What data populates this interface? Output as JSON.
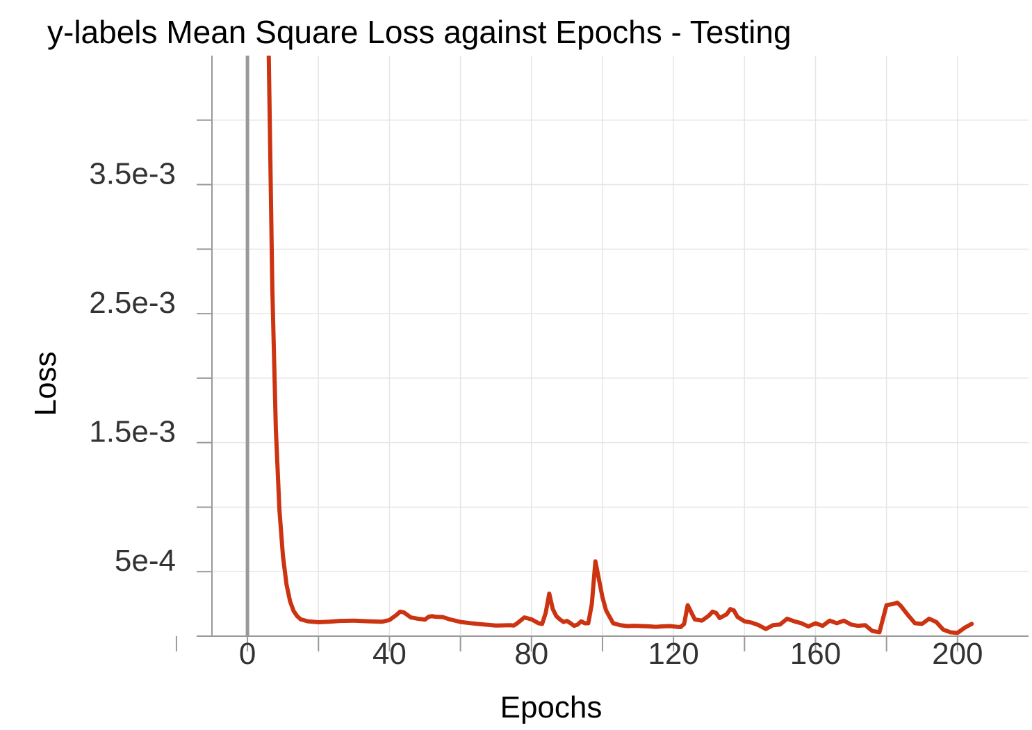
{
  "chart_data": {
    "type": "line",
    "title": "y-labels Mean Square Loss against Epochs - Testing",
    "xlabel": "Epochs",
    "ylabel": "Loss",
    "xlim": [
      -10,
      220
    ],
    "ylim": [
      0,
      0.0045
    ],
    "x_ticks": [
      0,
      40,
      80,
      120,
      160,
      200
    ],
    "x_minor_ticks": [
      -20,
      20,
      60,
      100,
      140,
      180
    ],
    "x_tick_labels": [
      "0",
      "40",
      "80",
      "120",
      "160",
      "200"
    ],
    "y_ticks": [
      0.0005,
      0.0015,
      0.0025,
      0.0035
    ],
    "y_minor_ticks": [
      0,
      0.001,
      0.002,
      0.003,
      0.004
    ],
    "y_tick_labels": [
      "5e-4",
      "1.5e-3",
      "2.5e-3",
      "3.5e-3"
    ],
    "grid": true,
    "series": [
      {
        "color": "#cc3311",
        "points": [
          [
            6,
            0.0045
          ],
          [
            7,
            0.0027
          ],
          [
            8,
            0.0016
          ],
          [
            9,
            0.00098
          ],
          [
            10,
            0.00062
          ],
          [
            11,
            0.0004
          ],
          [
            12,
            0.00027
          ],
          [
            13,
            0.000195
          ],
          [
            14,
            0.000155
          ],
          [
            15,
            0.00013
          ],
          [
            17,
            0.000115
          ],
          [
            20,
            0.000108
          ],
          [
            23,
            0.000112
          ],
          [
            26,
            0.000118
          ],
          [
            30,
            0.00012
          ],
          [
            34,
            0.000115
          ],
          [
            38,
            0.000112
          ],
          [
            40,
            0.000125
          ],
          [
            42,
            0.000165
          ],
          [
            43,
            0.00019
          ],
          [
            44,
            0.000185
          ],
          [
            46,
            0.000145
          ],
          [
            48,
            0.000135
          ],
          [
            50,
            0.000128
          ],
          [
            51,
            0.00015
          ],
          [
            52,
            0.000155
          ],
          [
            53,
            0.00015
          ],
          [
            55,
            0.000148
          ],
          [
            57,
            0.00013
          ],
          [
            60,
            0.00011
          ],
          [
            63,
            0.0001
          ],
          [
            66,
            9.2e-05
          ],
          [
            70,
            8.2e-05
          ],
          [
            74,
            8.5e-05
          ],
          [
            75,
            8.2e-05
          ],
          [
            76,
            0.0001
          ],
          [
            78,
            0.000145
          ],
          [
            80,
            0.00013
          ],
          [
            82,
            0.0001
          ],
          [
            83,
            9.5e-05
          ],
          [
            84,
            0.00018
          ],
          [
            85,
            0.00033
          ],
          [
            86,
            0.00021
          ],
          [
            87,
            0.000155
          ],
          [
            88,
            0.00013
          ],
          [
            89,
            0.00011
          ],
          [
            90,
            0.000118
          ],
          [
            91,
            0.0001
          ],
          [
            92,
            8e-05
          ],
          [
            93,
            9e-05
          ],
          [
            94,
            0.000115
          ],
          [
            95,
            0.0001
          ],
          [
            96,
            0.0001
          ],
          [
            97,
            0.00025
          ],
          [
            98,
            0.00058
          ],
          [
            99,
            0.00044
          ],
          [
            100,
            0.0003
          ],
          [
            101,
            0.0002
          ],
          [
            102,
            0.00015
          ],
          [
            103,
            0.0001
          ],
          [
            105,
            8.5e-05
          ],
          [
            107,
            7.8e-05
          ],
          [
            109,
            8e-05
          ],
          [
            111,
            7.8e-05
          ],
          [
            113,
            7.6e-05
          ],
          [
            115,
            7.2e-05
          ],
          [
            117,
            7.6e-05
          ],
          [
            119,
            7.8e-05
          ],
          [
            121,
            7.2e-05
          ],
          [
            122,
            7e-05
          ],
          [
            123,
            9.5e-05
          ],
          [
            124,
            0.00024
          ],
          [
            126,
            0.00013
          ],
          [
            128,
            0.00012
          ],
          [
            130,
            0.00016
          ],
          [
            131,
            0.00019
          ],
          [
            132,
            0.00018
          ],
          [
            133,
            0.00014
          ],
          [
            135,
            0.00017
          ],
          [
            136,
            0.00021
          ],
          [
            137,
            0.0002
          ],
          [
            138,
            0.00015
          ],
          [
            140,
            0.000115
          ],
          [
            142,
            0.000105
          ],
          [
            144,
            8.5e-05
          ],
          [
            146,
            5.5e-05
          ],
          [
            148,
            8.5e-05
          ],
          [
            150,
            9e-05
          ],
          [
            152,
            0.000135
          ],
          [
            154,
            0.000115
          ],
          [
            156,
            0.0001
          ],
          [
            158,
            7.5e-05
          ],
          [
            160,
            0.0001
          ],
          [
            162,
            8e-05
          ],
          [
            164,
            0.00012
          ],
          [
            166,
            0.0001
          ],
          [
            168,
            0.00012
          ],
          [
            170,
            9e-05
          ],
          [
            172,
            8e-05
          ],
          [
            174,
            8.5e-05
          ],
          [
            176,
            4e-05
          ],
          [
            178,
            3e-05
          ],
          [
            180,
            0.00024
          ],
          [
            182,
            0.00025
          ],
          [
            183,
            0.00026
          ],
          [
            184,
            0.000235
          ],
          [
            186,
            0.000165
          ],
          [
            188,
            0.0001
          ],
          [
            190,
            9.5e-05
          ],
          [
            192,
            0.000135
          ],
          [
            194,
            0.00011
          ],
          [
            196,
            5e-05
          ],
          [
            198,
            3e-05
          ],
          [
            200,
            2.5e-05
          ],
          [
            202,
            6.5e-05
          ],
          [
            204,
            9.5e-05
          ]
        ]
      }
    ]
  }
}
